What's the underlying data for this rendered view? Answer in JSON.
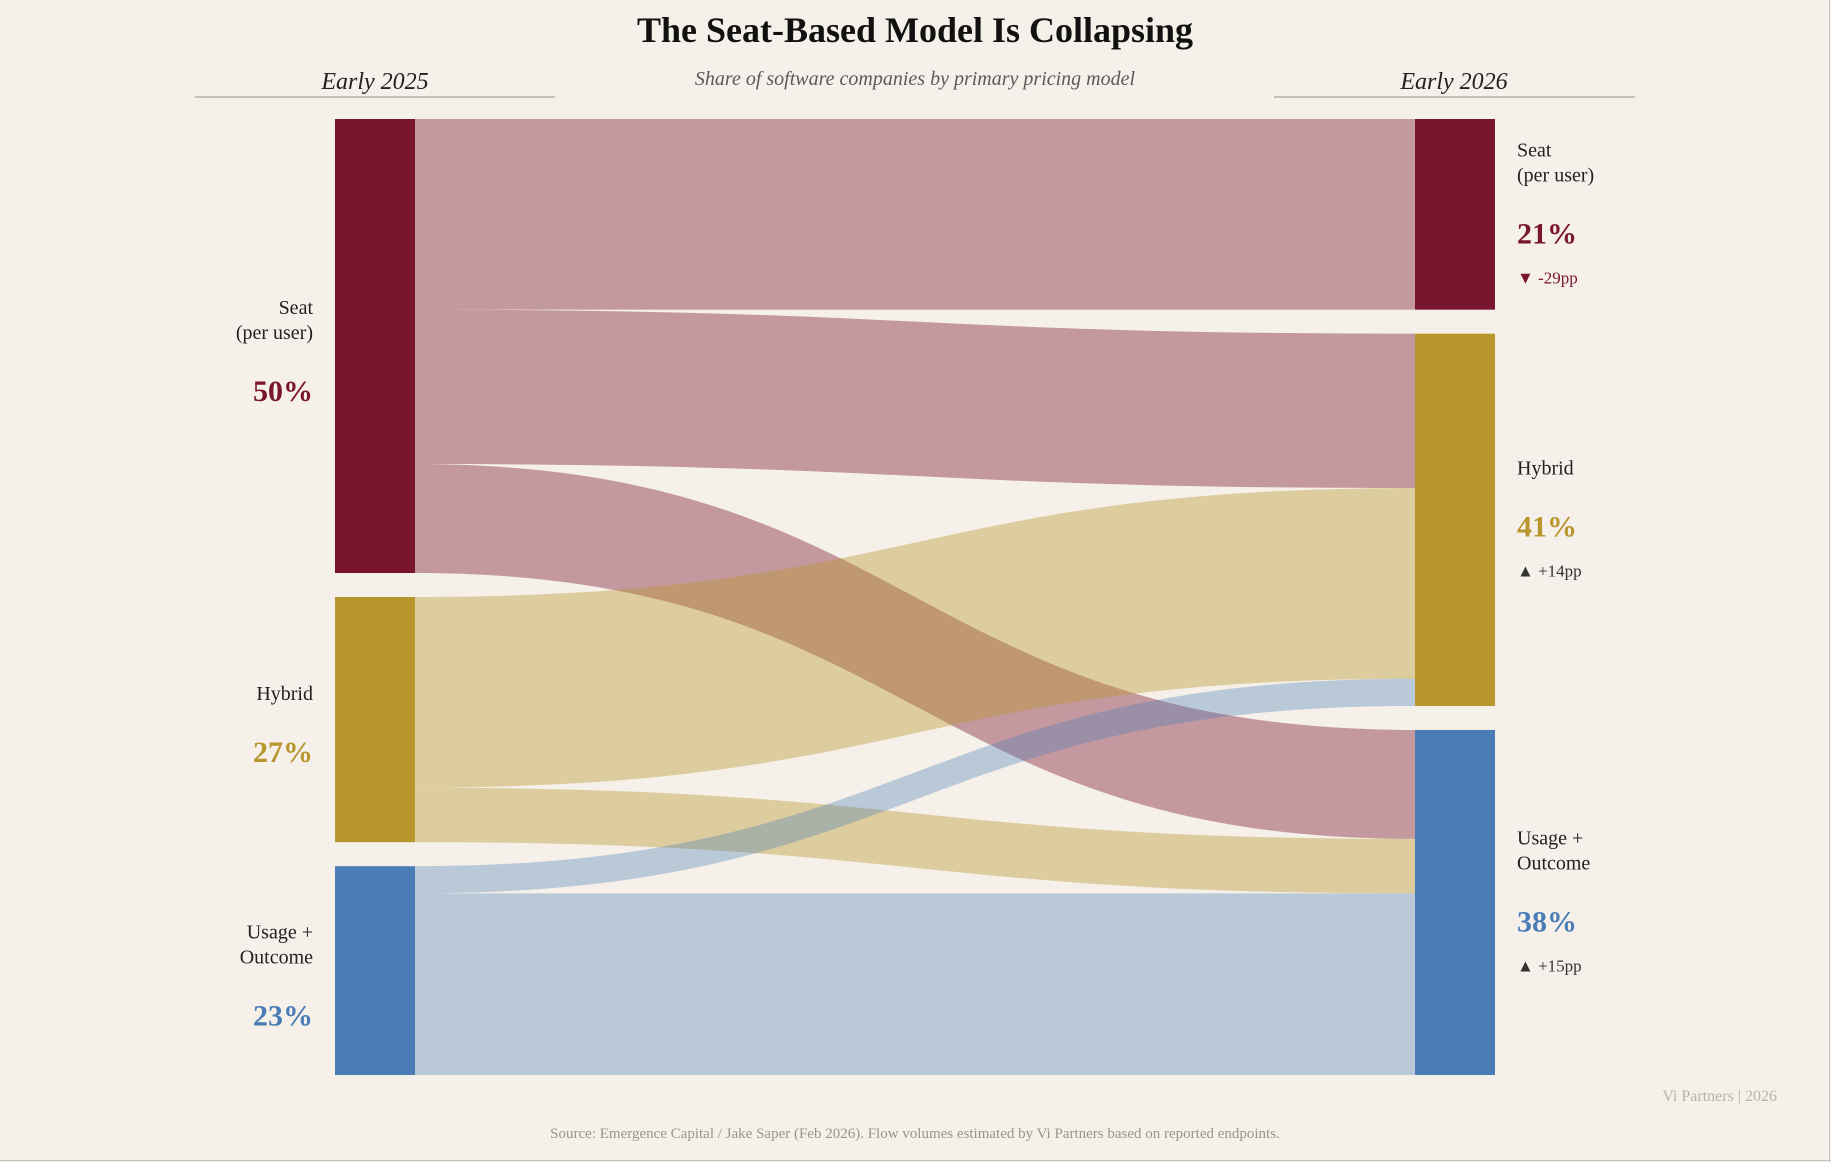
{
  "chart_data": {
    "type": "sankey",
    "title": "The Seat-Based Model Is Collapsing",
    "subtitle": "Share of software companies by primary pricing model",
    "left_header": "Early 2025",
    "right_header": "Early 2026",
    "unit": "%",
    "colors": {
      "seat": "#7a1530",
      "hybrid": "#b8952d",
      "usage": "#4a7db5"
    },
    "source_nodes": [
      {
        "id": "seat",
        "label_lines": [
          "Seat",
          "(per user)"
        ],
        "value": 50,
        "value_label": "50%"
      },
      {
        "id": "hybrid",
        "label_lines": [
          "Hybrid"
        ],
        "value": 27,
        "value_label": "27%"
      },
      {
        "id": "usage",
        "label_lines": [
          "Usage +",
          "Outcome"
        ],
        "value": 23,
        "value_label": "23%"
      }
    ],
    "target_nodes": [
      {
        "id": "seat",
        "label_lines": [
          "Seat",
          "(per user)"
        ],
        "value": 21,
        "value_label": "21%",
        "change": "▼ -29pp",
        "change_dir": "down"
      },
      {
        "id": "hybrid",
        "label_lines": [
          "Hybrid"
        ],
        "value": 41,
        "value_label": "41%",
        "change": "▲ +14pp",
        "change_dir": "up"
      },
      {
        "id": "usage",
        "label_lines": [
          "Usage +",
          "Outcome"
        ],
        "value": 38,
        "value_label": "38%",
        "change": "▲ +15pp",
        "change_dir": "up"
      }
    ],
    "flows": [
      {
        "from": "seat",
        "to": "seat",
        "value": 21
      },
      {
        "from": "seat",
        "to": "hybrid",
        "value": 17
      },
      {
        "from": "seat",
        "to": "usage",
        "value": 12
      },
      {
        "from": "hybrid",
        "to": "hybrid",
        "value": 21
      },
      {
        "from": "hybrid",
        "to": "usage",
        "value": 6
      },
      {
        "from": "usage",
        "to": "hybrid",
        "value": 3
      },
      {
        "from": "usage",
        "to": "usage",
        "value": 20
      }
    ],
    "source_note": "Source: Emergence Capital / Jake Saper (Feb 2026). Flow volumes estimated by Vi Partners based on reported endpoints.",
    "credit": "Vi Partners  |  2026"
  }
}
